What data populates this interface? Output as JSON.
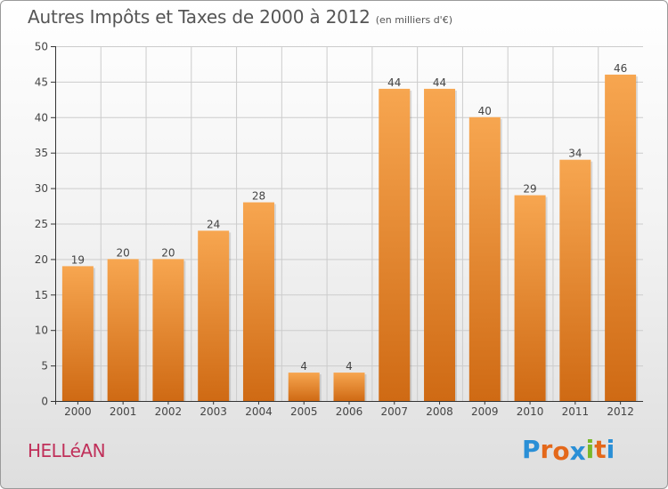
{
  "title": "Autres Impôts et Taxes de 2000 à 2012",
  "subtitle": "(en milliers d'€)",
  "place": "HELLéAN",
  "logo": {
    "letters": [
      "P",
      "r",
      "o",
      "x",
      "i",
      "t",
      "i"
    ],
    "colors": [
      "#2a8fd6",
      "#e4681a",
      "#e4681a",
      "#2a8fd6",
      "#79b829",
      "#e4681a",
      "#2a8fd6"
    ]
  },
  "colors": {
    "bar_top": "#f7a650",
    "bar_bottom": "#cf6a14",
    "axis": "#333333",
    "grid": "#cccccc",
    "label": "#444444"
  },
  "chart_data": {
    "type": "bar",
    "categories": [
      "2000",
      "2001",
      "2002",
      "2003",
      "2004",
      "2005",
      "2006",
      "2007",
      "2008",
      "2009",
      "2010",
      "2011",
      "2012"
    ],
    "values": [
      19,
      20,
      20,
      24,
      28,
      4,
      4,
      44,
      44,
      40,
      29,
      34,
      46
    ],
    "data_labels": [
      "19",
      "20",
      "20",
      "24",
      "28",
      "4",
      "4",
      "44",
      "44",
      "40",
      "29",
      "34",
      "46"
    ],
    "yticks": [
      0,
      5,
      10,
      15,
      20,
      25,
      30,
      35,
      40,
      45,
      50
    ],
    "ylim": [
      0,
      50
    ],
    "title": "Autres Impôts et Taxes de 2000 à 2012",
    "grid": true
  }
}
